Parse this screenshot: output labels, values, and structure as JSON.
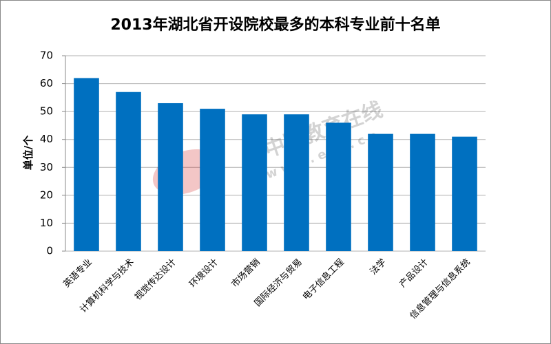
{
  "chart_data": {
    "type": "bar",
    "title": "2013年湖北省开设院校最多的本科专业前十名单",
    "y_label": "单位/个",
    "categories": [
      "英语专业",
      "计算机科学与技术",
      "视觉传达设计",
      "环境设计",
      "市场营销",
      "国际经济与贸易",
      "电子信息工程",
      "法学",
      "产品设计",
      "信息管理与信息系统"
    ],
    "values": [
      62,
      57,
      53,
      51,
      49,
      49,
      46,
      42,
      42,
      41
    ],
    "color": "#0070c0",
    "ylim": [
      0,
      70
    ],
    "yticks": [
      0,
      10,
      20,
      30,
      40,
      50,
      60,
      70
    ],
    "grid": true,
    "watermark": [
      "中国教育在线",
      "www.eol.cn"
    ]
  }
}
